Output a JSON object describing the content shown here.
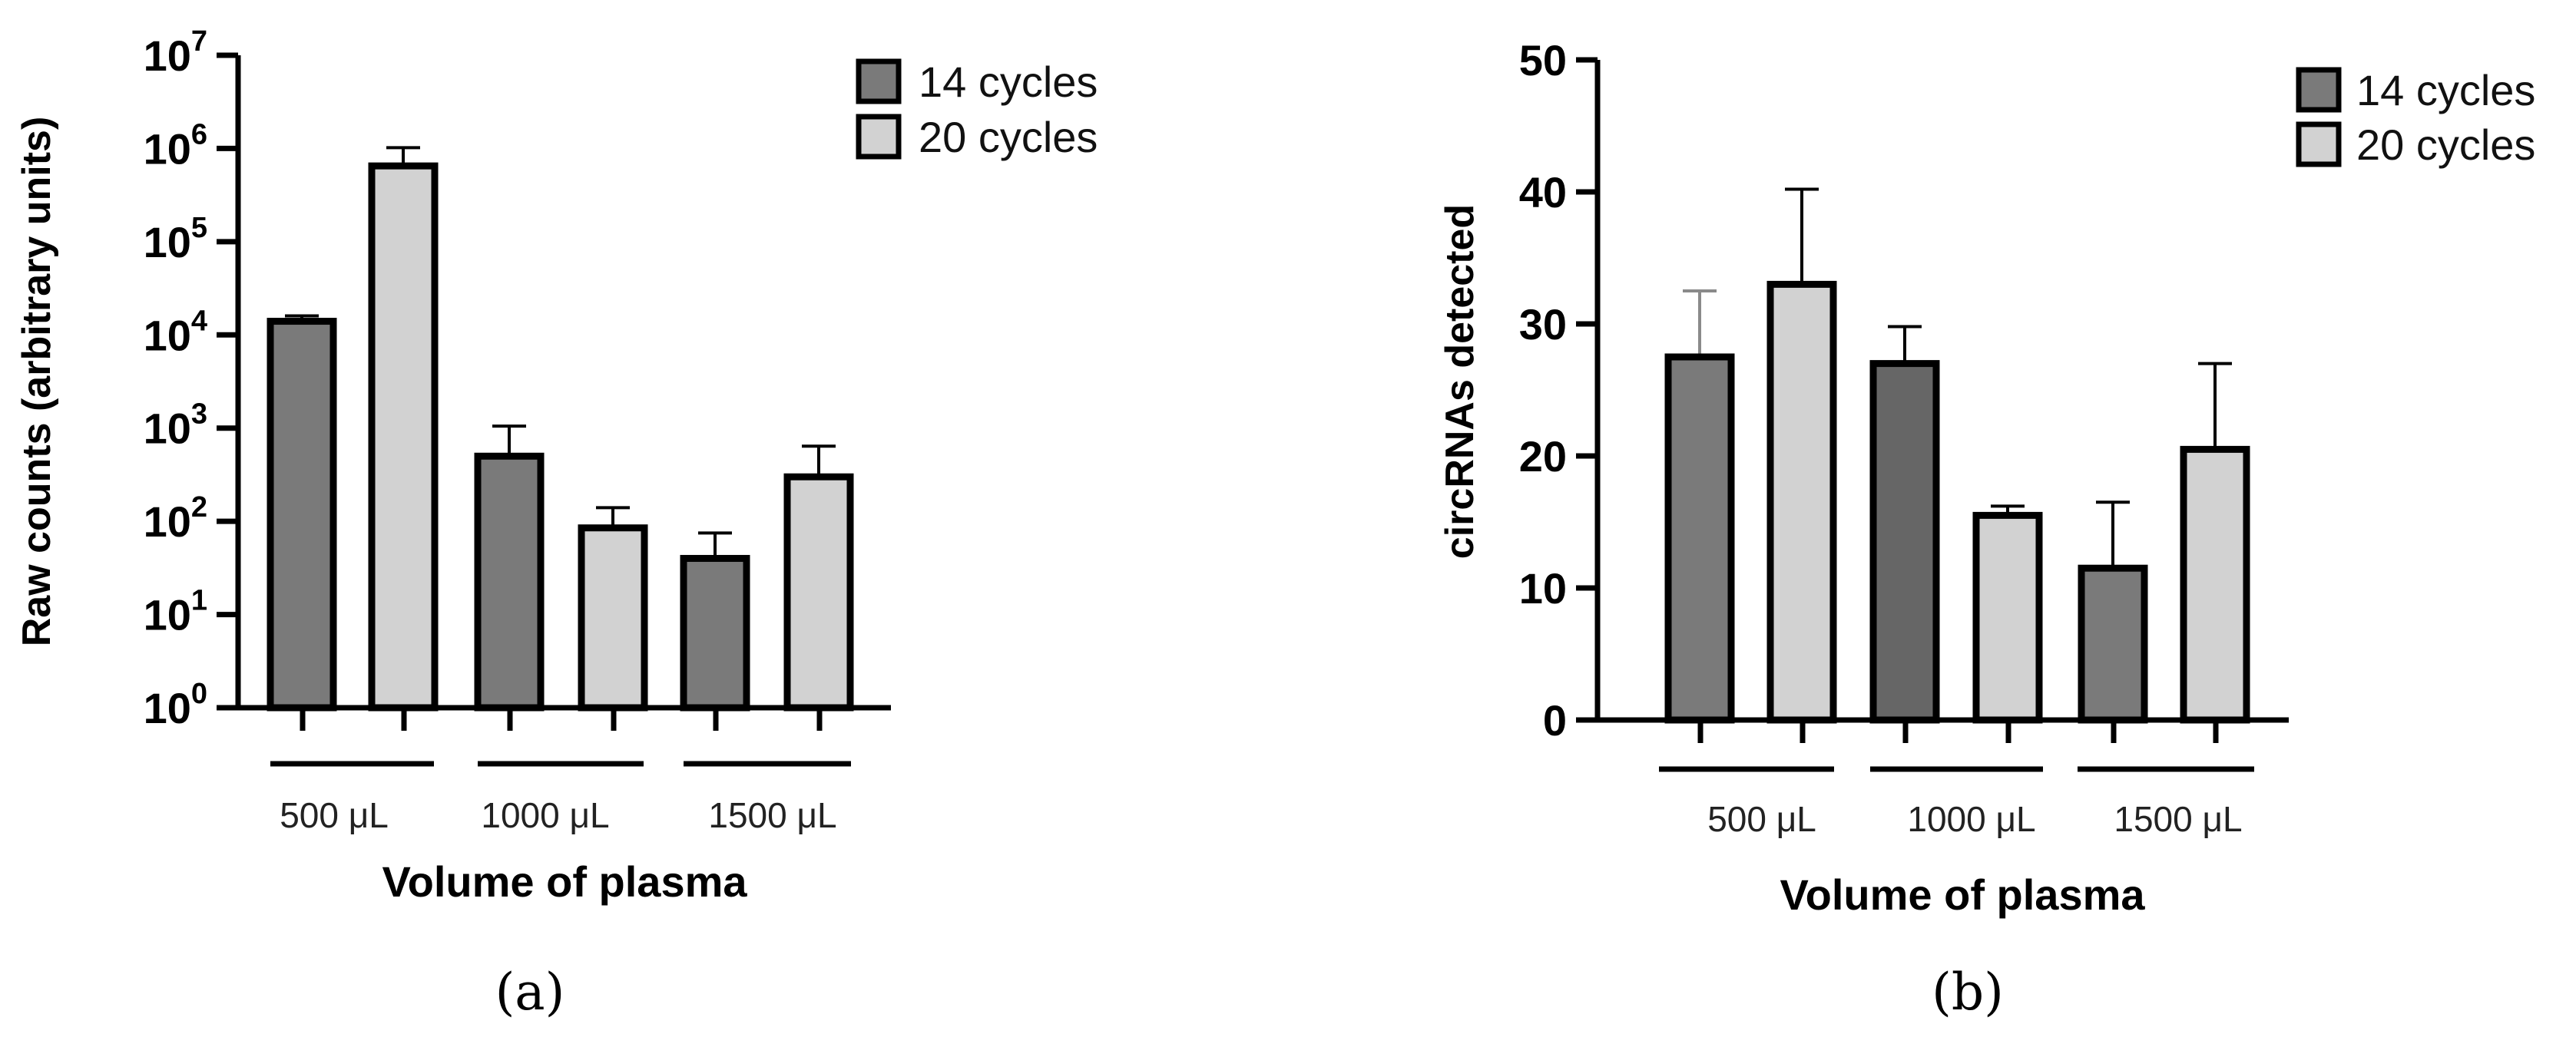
{
  "colors": {
    "series_14": "#7a7a7a",
    "series_14_panel_b_1000": "#666666",
    "series_20": "#d2d2d2",
    "outline": "#000000",
    "error_bar_light": "#8a8a8a"
  },
  "chart_data": [
    {
      "type": "bar",
      "panel_label": "(a)",
      "scale": "log",
      "ylabel": "Raw counts (arbitrary units)",
      "xlabel": "Volume of plasma",
      "ylim": [
        1,
        10000000
      ],
      "y_ticks": [
        {
          "value": 1,
          "base": "10",
          "exp": "0"
        },
        {
          "value": 10,
          "base": "10",
          "exp": "1"
        },
        {
          "value": 100,
          "base": "10",
          "exp": "2"
        },
        {
          "value": 1000,
          "base": "10",
          "exp": "3"
        },
        {
          "value": 10000,
          "base": "10",
          "exp": "4"
        },
        {
          "value": 100000,
          "base": "10",
          "exp": "5"
        },
        {
          "value": 1000000,
          "base": "10",
          "exp": "6"
        },
        {
          "value": 10000000,
          "base": "10",
          "exp": "7"
        }
      ],
      "categories": [
        "500 μL",
        "1000 μL",
        "1500 μL"
      ],
      "series": [
        {
          "name": "14 cycles",
          "values": [
            14000,
            500,
            40
          ],
          "errors_upper": [
            16000,
            1050,
            75
          ]
        },
        {
          "name": "20 cycles",
          "values": [
            650000,
            85,
            300
          ],
          "errors_upper": [
            1020000,
            140,
            640
          ]
        }
      ],
      "legend_position": "top-right"
    },
    {
      "type": "bar",
      "panel_label": "(b)",
      "scale": "linear",
      "ylabel": "circRNAs detected",
      "xlabel": "Volume of plasma",
      "ylim": [
        0,
        50
      ],
      "y_ticks": [
        {
          "value": 0,
          "label": "0"
        },
        {
          "value": 10,
          "label": "10"
        },
        {
          "value": 20,
          "label": "20"
        },
        {
          "value": 30,
          "label": "30"
        },
        {
          "value": 40,
          "label": "40"
        },
        {
          "value": 50,
          "label": "50"
        }
      ],
      "categories": [
        "500 μL",
        "1000 μL",
        "1500 μL"
      ],
      "series": [
        {
          "name": "14 cycles",
          "values": [
            27.5,
            27,
            11.5
          ],
          "errors_upper": [
            32.5,
            29.8,
            16.5
          ]
        },
        {
          "name": "20 cycles",
          "values": [
            33,
            15.5,
            20.5
          ],
          "errors_upper": [
            40.2,
            16.2,
            27
          ]
        }
      ],
      "legend_position": "top-right"
    }
  ]
}
